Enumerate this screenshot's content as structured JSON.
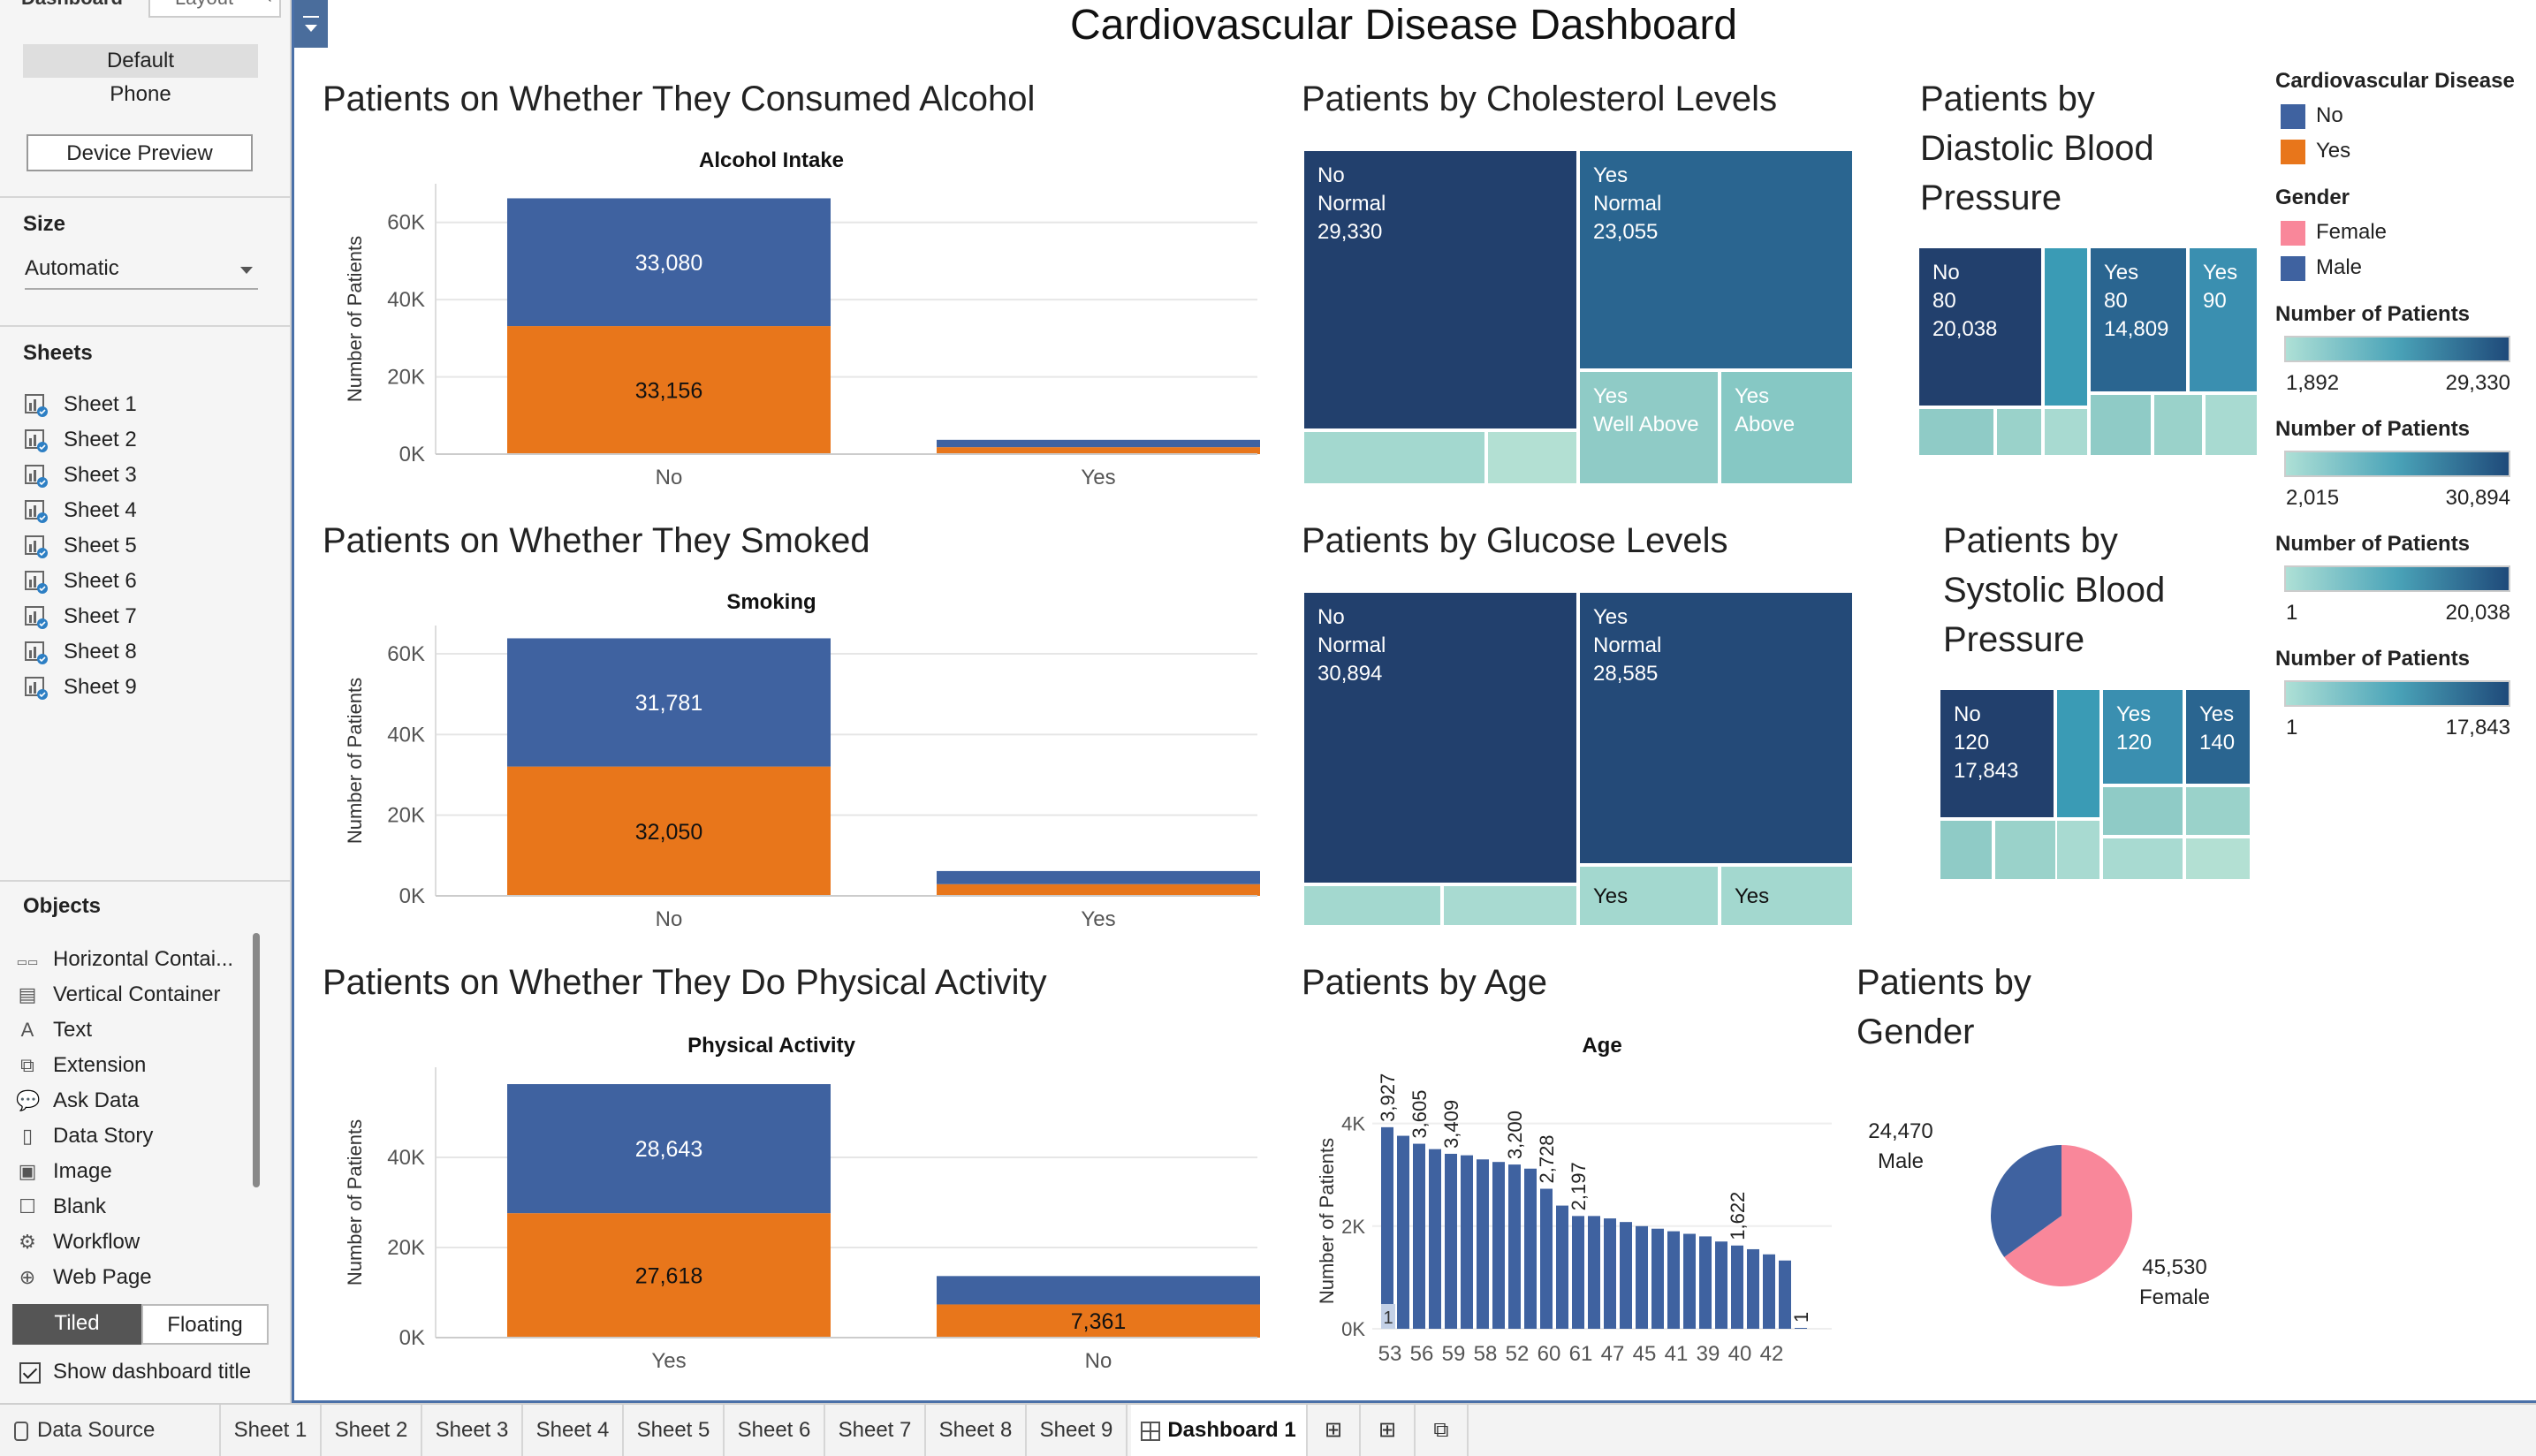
{
  "left_panel": {
    "tabs": [
      "Dashboard",
      "Layout"
    ],
    "devices": [
      "Default",
      "Phone"
    ],
    "device_preview": "Device Preview",
    "size_label": "Size",
    "size_value": "Automatic",
    "sheets_label": "Sheets",
    "sheets": [
      "Sheet 1",
      "Sheet 2",
      "Sheet 3",
      "Sheet 4",
      "Sheet 5",
      "Sheet 6",
      "Sheet 7",
      "Sheet 8",
      "Sheet 9"
    ],
    "objects_label": "Objects",
    "objects": [
      "Horizontal Contai...",
      "Vertical Container",
      "Text",
      "Extension",
      "Ask Data",
      "Data Story",
      "Image",
      "Blank",
      "Workflow",
      "Web Page"
    ],
    "tiled": "Tiled",
    "floating": "Floating",
    "show_title": "Show dashboard title"
  },
  "dashboard": {
    "title": "Cardiovascular Disease Dashboard",
    "panels": {
      "alcohol": "Patients on Whether They Consumed Alcohol",
      "smoke": "Patients on Whether They Smoked",
      "active": "Patients on Whether They Do Physical Activity",
      "chol": "Patients by Cholesterol Levels",
      "gluc": "Patients by Glucose Levels",
      "age": "Patients by Age",
      "dia": "Patients by Diastolic Blood Pressure",
      "sys": "Patients by Systolic Blood Pressure",
      "gender": "Patients by Gender"
    },
    "legend": {
      "cardio_title": "Cardiovascular Disease",
      "cardio_items": [
        {
          "label": "No",
          "color": "#3f62a0"
        },
        {
          "label": "Yes",
          "color": "#e8761b"
        }
      ],
      "gender_title": "Gender",
      "gender_items": [
        {
          "label": "Female",
          "color": "#f9879a"
        },
        {
          "label": "Male",
          "color": "#3f62a0"
        }
      ],
      "scales": [
        {
          "title": "Number of Patients",
          "min": "1,892",
          "max": "29,330"
        },
        {
          "title": "Number of Patients",
          "min": "2,015",
          "max": "30,894"
        },
        {
          "title": "Number of Patients",
          "min": "1",
          "max": "20,038"
        },
        {
          "title": "Number of Patients",
          "min": "1",
          "max": "17,843"
        }
      ]
    }
  },
  "chart_data": [
    {
      "type": "bar",
      "stacked": true,
      "title": "Alcohol Intake",
      "ylabel": "Number of Patients",
      "categories": [
        "No",
        "Yes"
      ],
      "ylim": [
        0,
        70000
      ],
      "yticks": [
        "0K",
        "20K",
        "40K",
        "60K"
      ],
      "series": [
        {
          "name": "Yes",
          "values": [
            33156,
            1800
          ]
        },
        {
          "name": "No",
          "values": [
            33080,
            1900
          ]
        }
      ],
      "labels": [
        [
          "33,156",
          ""
        ],
        [
          "33,080",
          ""
        ]
      ]
    },
    {
      "type": "bar",
      "stacked": true,
      "title": "Smoking",
      "ylabel": "Number of Patients",
      "categories": [
        "No",
        "Yes"
      ],
      "ylim": [
        0,
        67000
      ],
      "yticks": [
        "0K",
        "20K",
        "40K",
        "60K"
      ],
      "series": [
        {
          "name": "Yes",
          "values": [
            32050,
            2900
          ]
        },
        {
          "name": "No",
          "values": [
            31781,
            3250
          ]
        }
      ],
      "labels": [
        [
          "32,050",
          ""
        ],
        [
          "31,781",
          ""
        ]
      ]
    },
    {
      "type": "bar",
      "stacked": true,
      "title": "Physical Activity",
      "ylabel": "Number of Patients",
      "categories": [
        "Yes",
        "No"
      ],
      "ylim": [
        0,
        60000
      ],
      "yticks": [
        "0K",
        "20K",
        "40K"
      ],
      "series": [
        {
          "name": "Yes",
          "values": [
            27618,
            7361
          ]
        },
        {
          "name": "No",
          "values": [
            28643,
            6300
          ]
        }
      ],
      "labels": [
        [
          "27,618",
          "7,361"
        ],
        [
          "28,643",
          ""
        ]
      ]
    },
    {
      "type": "heatmap",
      "subtype": "treemap",
      "title": "Cholesterol Levels",
      "cells": [
        {
          "cardio": "No",
          "level": "Normal",
          "value": 29330,
          "label": [
            "No",
            "Normal",
            "29,330"
          ]
        },
        {
          "cardio": "Yes",
          "level": "Normal",
          "value": 23055,
          "label": [
            "Yes",
            "Normal",
            "23,055"
          ]
        },
        {
          "cardio": "Yes",
          "level": "Well Above",
          "label": [
            "Yes",
            "Well Above"
          ]
        },
        {
          "cardio": "Yes",
          "level": "Above",
          "label": [
            "Yes",
            "Above"
          ]
        }
      ]
    },
    {
      "type": "heatmap",
      "subtype": "treemap",
      "title": "Glucose Levels",
      "cells": [
        {
          "cardio": "No",
          "level": "Normal",
          "value": 30894,
          "label": [
            "No",
            "Normal",
            "30,894"
          ]
        },
        {
          "cardio": "Yes",
          "level": "Normal",
          "value": 28585,
          "label": [
            "Yes",
            "Normal",
            "28,585"
          ]
        },
        {
          "cardio": "Yes",
          "label": [
            "Yes"
          ]
        },
        {
          "cardio": "Yes",
          "label": [
            "Yes"
          ]
        }
      ]
    },
    {
      "type": "heatmap",
      "subtype": "treemap",
      "title": "Diastolic Blood Pressure",
      "cells": [
        {
          "cardio": "No",
          "bp": "80",
          "value": 20038,
          "label": [
            "No",
            "80",
            "20,038"
          ]
        },
        {
          "cardio": "Yes",
          "bp": "80",
          "value": 14809,
          "label": [
            "Yes",
            "80",
            "14,809"
          ]
        },
        {
          "cardio": "Yes",
          "bp": "90",
          "label": [
            "Yes",
            "90"
          ]
        }
      ]
    },
    {
      "type": "heatmap",
      "subtype": "treemap",
      "title": "Systolic Blood Pressure",
      "cells": [
        {
          "cardio": "No",
          "bp": "120",
          "value": 17843,
          "label": [
            "No",
            "120",
            "17,843"
          ]
        },
        {
          "cardio": "Yes",
          "bp": "120",
          "label": [
            "Yes",
            "120"
          ]
        },
        {
          "cardio": "Yes",
          "bp": "140",
          "label": [
            "Yes",
            "140"
          ]
        }
      ]
    },
    {
      "type": "bar",
      "title": "Age",
      "ylabel": "Number of Patients",
      "ylim": [
        0,
        4200
      ],
      "yticks": [
        "0K",
        "2K",
        "4K"
      ],
      "xtick_labels": [
        "53",
        "56",
        "59",
        "58",
        "52",
        "60",
        "61",
        "47",
        "45",
        "41",
        "39",
        "40",
        "42"
      ],
      "values": [
        3927,
        3760,
        3605,
        3500,
        3409,
        3380,
        3300,
        3250,
        3200,
        3120,
        2728,
        2400,
        2197,
        2197,
        2150,
        2080,
        2000,
        1950,
        1900,
        1850,
        1800,
        1700,
        1622,
        1550,
        1450,
        1330,
        1
      ],
      "data_labels": {
        "0": "3,927",
        "2": "3,605",
        "4": "3,409",
        "8": "3,200",
        "10": "2,728",
        "12": "2,197",
        "22": "1,622",
        "26": "1"
      }
    },
    {
      "type": "pie",
      "title": "Gender",
      "slices": [
        {
          "label": "Female",
          "value": 45530,
          "display": "45,530",
          "color": "#f9879a"
        },
        {
          "label": "Male",
          "value": 24470,
          "display": "24,470",
          "color": "#3f62a0"
        }
      ]
    }
  ],
  "bottom_tabs": {
    "data_source": "Data Source",
    "sheets": [
      "Sheet 1",
      "Sheet 2",
      "Sheet 3",
      "Sheet 4",
      "Sheet 5",
      "Sheet 6",
      "Sheet 7",
      "Sheet 8",
      "Sheet 9"
    ],
    "dashboard": "Dashboard 1"
  }
}
